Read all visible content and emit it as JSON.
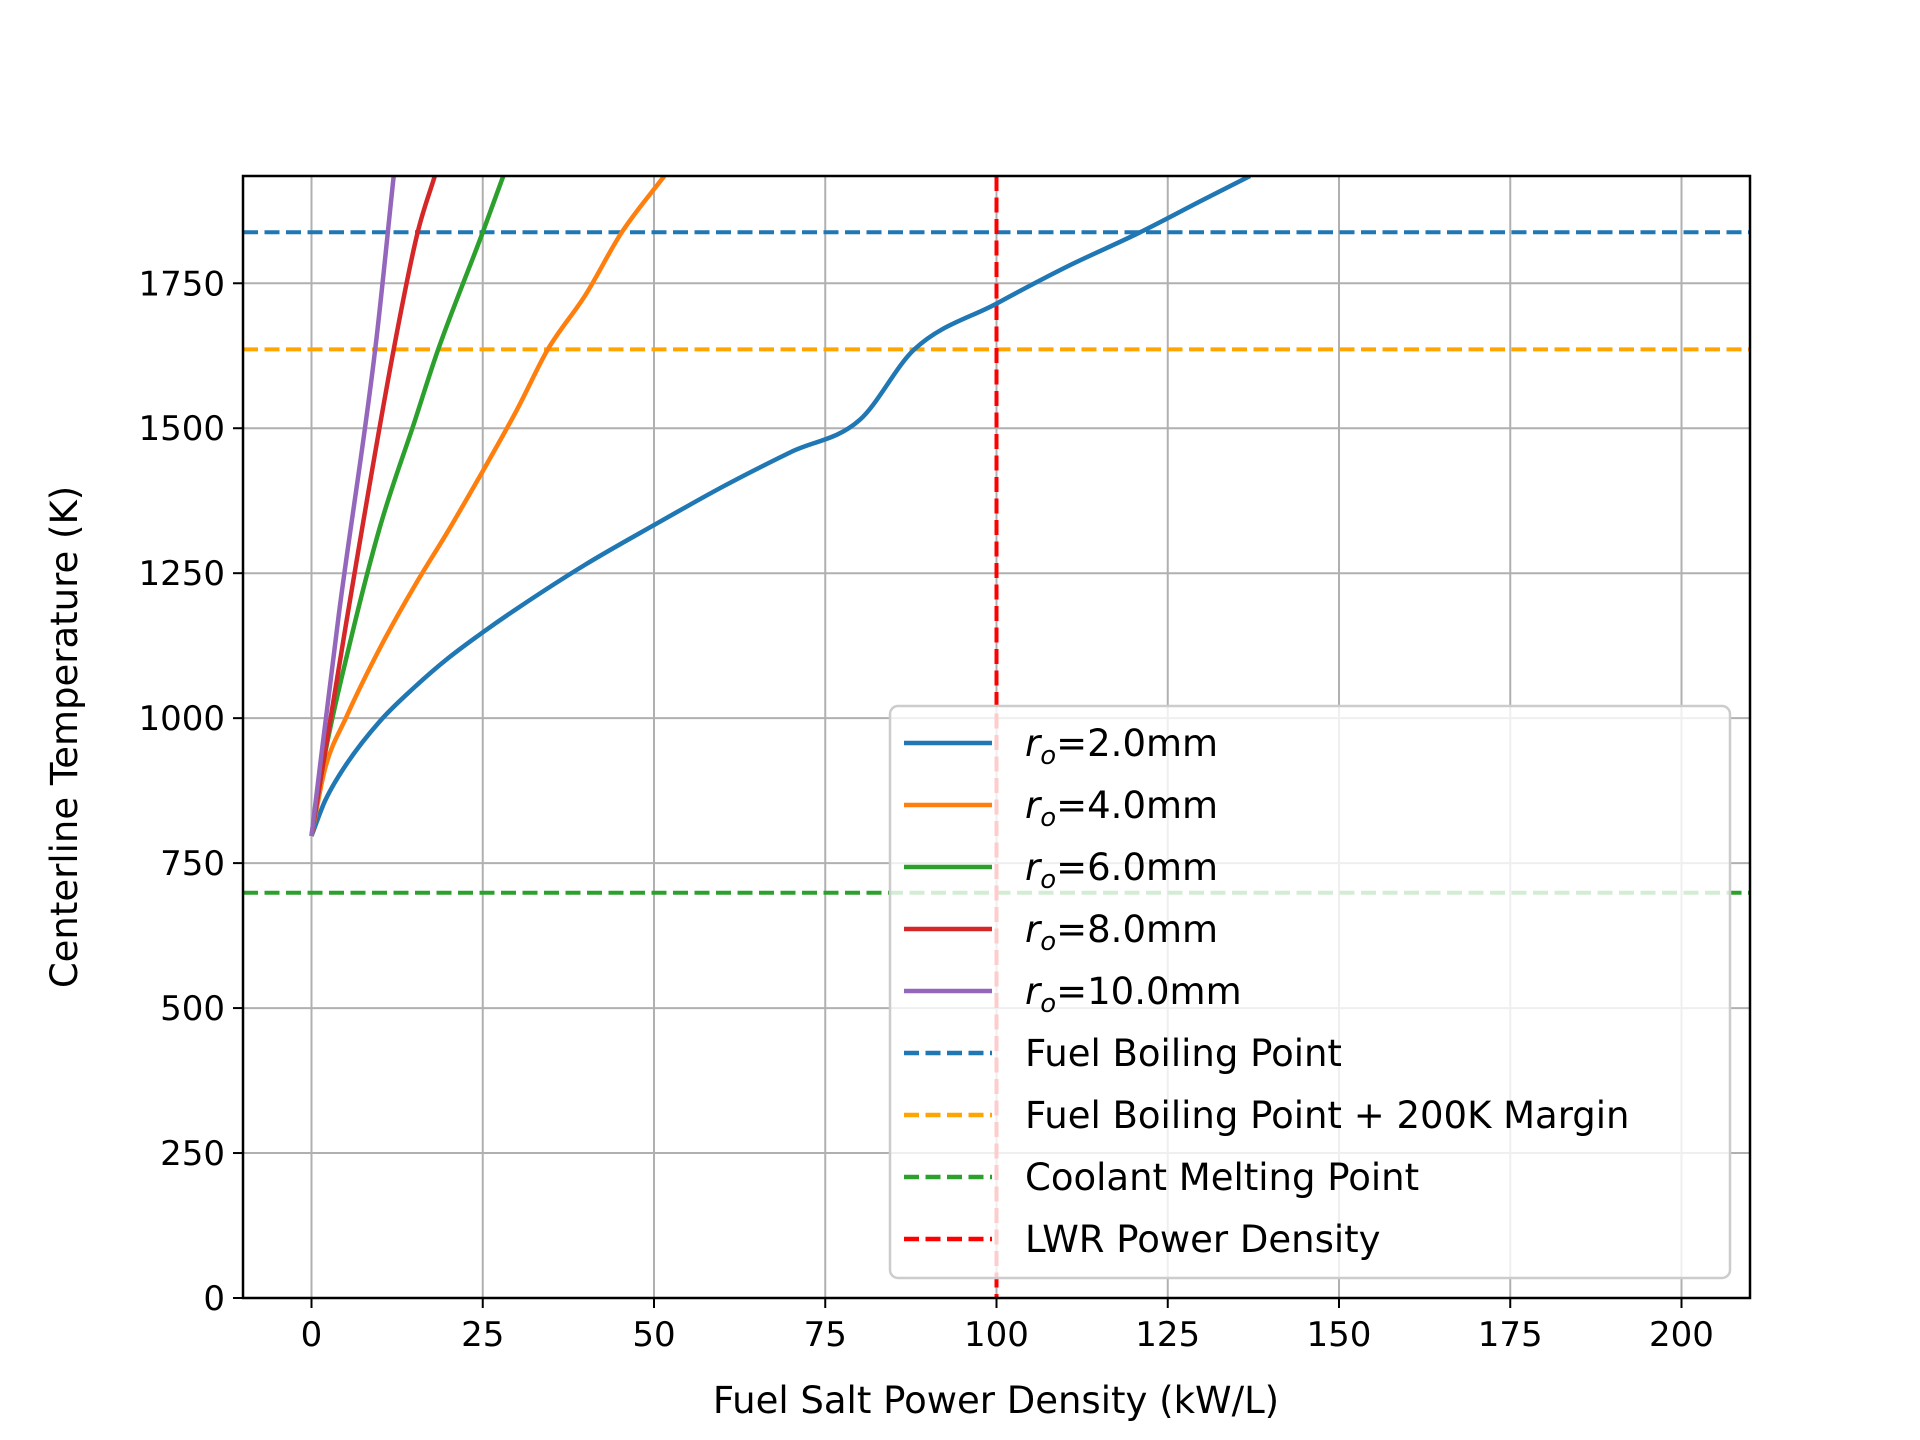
{
  "chart_data": {
    "type": "line",
    "xlabel": "Fuel Salt Power Density (kW/L)",
    "ylabel": "Centerline Temperature (K)",
    "xlim": [
      -10,
      210
    ],
    "ylim": [
      0,
      1935
    ],
    "xticks": [
      0,
      25,
      50,
      75,
      100,
      125,
      150,
      175,
      200
    ],
    "yticks": [
      0,
      250,
      500,
      750,
      1000,
      1250,
      1500,
      1750
    ],
    "grid": true,
    "legend_position": "lower right",
    "series": [
      {
        "name": "r_o=2.0mm",
        "label_base": "r",
        "label_sub": "o",
        "label_rest": "=2.0mm",
        "color": "#1f77b4",
        "style": "solid",
        "x": [
          0,
          2,
          5,
          10,
          15,
          20,
          25,
          30,
          40,
          50,
          60,
          70,
          80,
          88,
          100,
          110,
          121,
          130,
          137
        ],
        "y": [
          797,
          858,
          919,
          995,
          1053,
          1104,
          1148,
          1189,
          1265,
          1333,
          1399,
          1459,
          1514,
          1636,
          1715,
          1777,
          1838,
          1893,
          1935
        ]
      },
      {
        "name": "r_o=4.0mm",
        "label_base": "r",
        "label_sub": "o",
        "label_rest": "=4.0mm",
        "color": "#ff7f0e",
        "style": "solid",
        "x": [
          0,
          2,
          5,
          10,
          15,
          20,
          25,
          30,
          34.5,
          40,
          45.3,
          51.5
        ],
        "y": [
          797,
          914,
          1000,
          1121,
          1227,
          1324,
          1426,
          1532,
          1636,
          1730,
          1838,
          1935
        ]
      },
      {
        "name": "r_o=6.0mm",
        "label_base": "r",
        "label_sub": "o",
        "label_rest": "=6.0mm",
        "color": "#2ca02c",
        "style": "solid",
        "x": [
          0,
          2,
          5,
          10,
          15,
          18.5,
          25,
          28
        ],
        "y": [
          797,
          940,
          1100,
          1330,
          1510,
          1636,
          1838,
          1935
        ]
      },
      {
        "name": "r_o=8.0mm",
        "label_base": "r",
        "label_sub": "o",
        "label_rest": "=8.0mm",
        "color": "#d62728",
        "style": "solid",
        "x": [
          0,
          5,
          12,
          15.5,
          18
        ],
        "y": [
          797,
          1160,
          1636,
          1838,
          1935
        ]
      },
      {
        "name": "r_o=10.0mm",
        "label_base": "r",
        "label_sub": "o",
        "label_rest": "=10.0mm",
        "color": "#9467bd",
        "style": "solid",
        "x": [
          0,
          4,
          9.3,
          12
        ],
        "y": [
          797,
          1180,
          1636,
          1935
        ]
      }
    ],
    "reference_lines": [
      {
        "name": "Fuel Boiling Point",
        "orientation": "horizontal",
        "value": 1838,
        "color": "#1f77b4",
        "style": "dashed"
      },
      {
        "name": "Fuel Boiling Point + 200K Margin",
        "orientation": "horizontal",
        "value": 1636,
        "color": "#ffa500",
        "style": "dashed"
      },
      {
        "name": "Coolant Melting Point",
        "orientation": "horizontal",
        "value": 699,
        "color": "#2ca02c",
        "style": "dashed"
      },
      {
        "name": "LWR Power Density",
        "orientation": "vertical",
        "value": 100,
        "color": "#ff0000",
        "style": "dashed"
      }
    ]
  }
}
